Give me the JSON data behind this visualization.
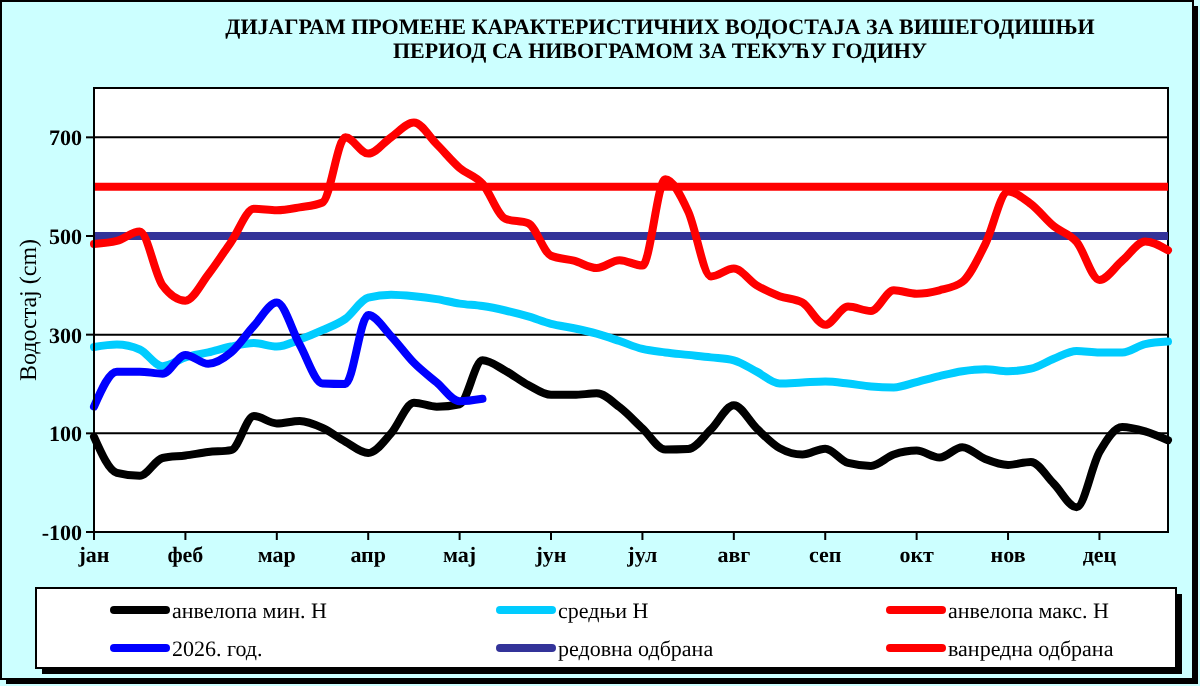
{
  "chart_data": {
    "type": "line",
    "title": "ДИЈАГРАМ ПРОМЕНЕ КАРАКТЕРИСТИЧНИХ ВОДОСТАЈА ЗА ВИШЕГОДИШЊИ ПЕРИОД СА НИВОГРАМОМ ЗА ТЕКУЋУ ГОДИНУ",
    "ylabel": "Водостај (cm)",
    "categories": [
      "јан",
      null,
      null,
      null,
      "феб",
      null,
      null,
      null,
      "мар",
      null,
      null,
      null,
      "апр",
      null,
      null,
      null,
      "мај",
      null,
      null,
      null,
      "јун",
      null,
      null,
      null,
      "јул",
      null,
      null,
      null,
      "авг",
      null,
      null,
      null,
      "сеп",
      null,
      null,
      null,
      "окт",
      null,
      null,
      null,
      "нов",
      null,
      null,
      null,
      "дец",
      null,
      null,
      null
    ],
    "ylim": [
      -100,
      800
    ],
    "yticks": [
      -100,
      100,
      300,
      500,
      700
    ],
    "grid": "y",
    "legend": "bottom",
    "marker": "none",
    "line_style": "solid",
    "series": [
      {
        "name": "анвелопа мин. H",
        "color": "#000000",
        "values": [
          93,
          20,
          14,
          50,
          55,
          62,
          66,
          135,
          120,
          125,
          111,
          83,
          60,
          100,
          162,
          154,
          159,
          248,
          227,
          198,
          178,
          178,
          181,
          153,
          110,
          67,
          68,
          108,
          157,
          110,
          70,
          57,
          69,
          40,
          34,
          57,
          65,
          51,
          72,
          48,
          36,
          42,
          -2,
          -50,
          62,
          113,
          104,
          86
        ]
      },
      {
        "name": "средњи H",
        "color": "#00ccff",
        "values": [
          275,
          280,
          270,
          236,
          254,
          264,
          276,
          283,
          276,
          290,
          309,
          332,
          375,
          381,
          378,
          372,
          363,
          358,
          349,
          337,
          322,
          313,
          302,
          287,
          271,
          264,
          259,
          254,
          248,
          225,
          201,
          203,
          205,
          201,
          195,
          193,
          204,
          216,
          226,
          230,
          226,
          231,
          251,
          267,
          264,
          264,
          281,
          286
        ]
      },
      {
        "name": "анвелопа макс. H",
        "color": "#ff0000",
        "values": [
          484,
          490,
          509,
          400,
          369,
          422,
          488,
          555,
          552,
          558,
          568,
          700,
          667,
          700,
          730,
          686,
          638,
          606,
          535,
          526,
          460,
          450,
          435,
          451,
          440,
          615,
          550,
          418,
          434,
          400,
          378,
          365,
          320,
          357,
          348,
          390,
          383,
          390,
          407,
          483,
          590,
          565,
          520,
          488,
          411,
          450,
          489,
          471
        ]
      },
      {
        "name": "2026. год.",
        "color": "#0000ff",
        "values": [
          154,
          225,
          225,
          221,
          259,
          241,
          264,
          318,
          365,
          280,
          201,
          200,
          340,
          297,
          243,
          203,
          165,
          170,
          null,
          null,
          null,
          null,
          null,
          null,
          null,
          null,
          null,
          null,
          null,
          null,
          null,
          null,
          null,
          null,
          null,
          null,
          null,
          null,
          null,
          null,
          null,
          null,
          null,
          null,
          null,
          null,
          null,
          null
        ]
      }
    ],
    "ref_lines": [
      {
        "axis": "y",
        "value": 500,
        "label": "редовна одбрана",
        "color": "#333399"
      },
      {
        "axis": "y",
        "value": 600,
        "label": "ванредна одбрана",
        "color": "#ff0000"
      }
    ]
  }
}
